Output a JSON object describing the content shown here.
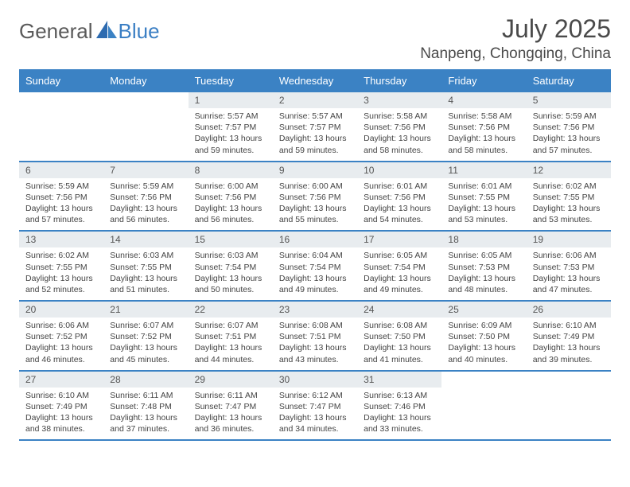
{
  "logo": {
    "text1": "General",
    "text2": "Blue"
  },
  "title": "July 2025",
  "location": "Nanpeng, Chongqing, China",
  "colors": {
    "header_bg": "#3b82c4",
    "header_text": "#ffffff",
    "daynum_bg": "#e8ecef",
    "border": "#3b82c4",
    "body_text": "#444444"
  },
  "dayNames": [
    "Sunday",
    "Monday",
    "Tuesday",
    "Wednesday",
    "Thursday",
    "Friday",
    "Saturday"
  ],
  "weeks": [
    [
      null,
      null,
      {
        "n": "1",
        "sr": "5:57 AM",
        "ss": "7:57 PM",
        "dl": "13 hours and 59 minutes."
      },
      {
        "n": "2",
        "sr": "5:57 AM",
        "ss": "7:57 PM",
        "dl": "13 hours and 59 minutes."
      },
      {
        "n": "3",
        "sr": "5:58 AM",
        "ss": "7:56 PM",
        "dl": "13 hours and 58 minutes."
      },
      {
        "n": "4",
        "sr": "5:58 AM",
        "ss": "7:56 PM",
        "dl": "13 hours and 58 minutes."
      },
      {
        "n": "5",
        "sr": "5:59 AM",
        "ss": "7:56 PM",
        "dl": "13 hours and 57 minutes."
      }
    ],
    [
      {
        "n": "6",
        "sr": "5:59 AM",
        "ss": "7:56 PM",
        "dl": "13 hours and 57 minutes."
      },
      {
        "n": "7",
        "sr": "5:59 AM",
        "ss": "7:56 PM",
        "dl": "13 hours and 56 minutes."
      },
      {
        "n": "8",
        "sr": "6:00 AM",
        "ss": "7:56 PM",
        "dl": "13 hours and 56 minutes."
      },
      {
        "n": "9",
        "sr": "6:00 AM",
        "ss": "7:56 PM",
        "dl": "13 hours and 55 minutes."
      },
      {
        "n": "10",
        "sr": "6:01 AM",
        "ss": "7:56 PM",
        "dl": "13 hours and 54 minutes."
      },
      {
        "n": "11",
        "sr": "6:01 AM",
        "ss": "7:55 PM",
        "dl": "13 hours and 53 minutes."
      },
      {
        "n": "12",
        "sr": "6:02 AM",
        "ss": "7:55 PM",
        "dl": "13 hours and 53 minutes."
      }
    ],
    [
      {
        "n": "13",
        "sr": "6:02 AM",
        "ss": "7:55 PM",
        "dl": "13 hours and 52 minutes."
      },
      {
        "n": "14",
        "sr": "6:03 AM",
        "ss": "7:55 PM",
        "dl": "13 hours and 51 minutes."
      },
      {
        "n": "15",
        "sr": "6:03 AM",
        "ss": "7:54 PM",
        "dl": "13 hours and 50 minutes."
      },
      {
        "n": "16",
        "sr": "6:04 AM",
        "ss": "7:54 PM",
        "dl": "13 hours and 49 minutes."
      },
      {
        "n": "17",
        "sr": "6:05 AM",
        "ss": "7:54 PM",
        "dl": "13 hours and 49 minutes."
      },
      {
        "n": "18",
        "sr": "6:05 AM",
        "ss": "7:53 PM",
        "dl": "13 hours and 48 minutes."
      },
      {
        "n": "19",
        "sr": "6:06 AM",
        "ss": "7:53 PM",
        "dl": "13 hours and 47 minutes."
      }
    ],
    [
      {
        "n": "20",
        "sr": "6:06 AM",
        "ss": "7:52 PM",
        "dl": "13 hours and 46 minutes."
      },
      {
        "n": "21",
        "sr": "6:07 AM",
        "ss": "7:52 PM",
        "dl": "13 hours and 45 minutes."
      },
      {
        "n": "22",
        "sr": "6:07 AM",
        "ss": "7:51 PM",
        "dl": "13 hours and 44 minutes."
      },
      {
        "n": "23",
        "sr": "6:08 AM",
        "ss": "7:51 PM",
        "dl": "13 hours and 43 minutes."
      },
      {
        "n": "24",
        "sr": "6:08 AM",
        "ss": "7:50 PM",
        "dl": "13 hours and 41 minutes."
      },
      {
        "n": "25",
        "sr": "6:09 AM",
        "ss": "7:50 PM",
        "dl": "13 hours and 40 minutes."
      },
      {
        "n": "26",
        "sr": "6:10 AM",
        "ss": "7:49 PM",
        "dl": "13 hours and 39 minutes."
      }
    ],
    [
      {
        "n": "27",
        "sr": "6:10 AM",
        "ss": "7:49 PM",
        "dl": "13 hours and 38 minutes."
      },
      {
        "n": "28",
        "sr": "6:11 AM",
        "ss": "7:48 PM",
        "dl": "13 hours and 37 minutes."
      },
      {
        "n": "29",
        "sr": "6:11 AM",
        "ss": "7:47 PM",
        "dl": "13 hours and 36 minutes."
      },
      {
        "n": "30",
        "sr": "6:12 AM",
        "ss": "7:47 PM",
        "dl": "13 hours and 34 minutes."
      },
      {
        "n": "31",
        "sr": "6:13 AM",
        "ss": "7:46 PM",
        "dl": "13 hours and 33 minutes."
      },
      null,
      null
    ]
  ],
  "labels": {
    "sunrise": "Sunrise: ",
    "sunset": "Sunset: ",
    "daylight": "Daylight: "
  }
}
